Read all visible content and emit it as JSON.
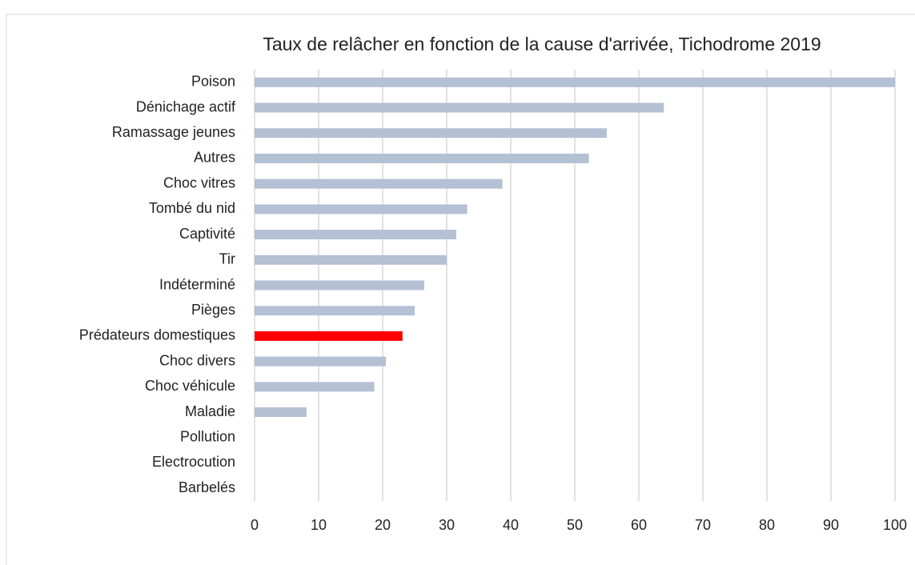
{
  "chart_data": {
    "type": "bar",
    "orientation": "horizontal",
    "title": "Taux de relâcher en fonction de la cause d'arrivée, Tichodrome 2019",
    "categories": [
      "Poison",
      "Dénichage actif",
      "Ramassage jeunes",
      "Autres",
      "Choc vitres",
      "Tombé du nid",
      "Captivité",
      "Tir",
      "Indéterminé",
      "Pièges",
      "Prédateurs domestiques",
      "Choc divers",
      "Choc véhicule",
      "Maladie",
      "Pollution",
      "Electrocution",
      "Barbelés"
    ],
    "values": [
      100,
      63.9,
      55,
      52.2,
      38.7,
      33.2,
      31.5,
      30,
      26.5,
      25,
      23.1,
      20.5,
      18.7,
      8.1,
      0,
      0,
      0
    ],
    "colors": [
      "#b4c0d3",
      "#b4c0d3",
      "#b4c0d3",
      "#b4c0d3",
      "#b4c0d3",
      "#b4c0d3",
      "#b4c0d3",
      "#b4c0d3",
      "#b4c0d3",
      "#b4c0d3",
      "#ff0000",
      "#b4c0d3",
      "#b4c0d3",
      "#b4c0d3",
      "#b4c0d3",
      "#b4c0d3",
      "#b4c0d3"
    ],
    "xlim": [
      0,
      100
    ],
    "xticks": [
      0,
      10,
      20,
      30,
      40,
      50,
      60,
      70,
      80,
      90,
      100
    ],
    "grid": true
  }
}
